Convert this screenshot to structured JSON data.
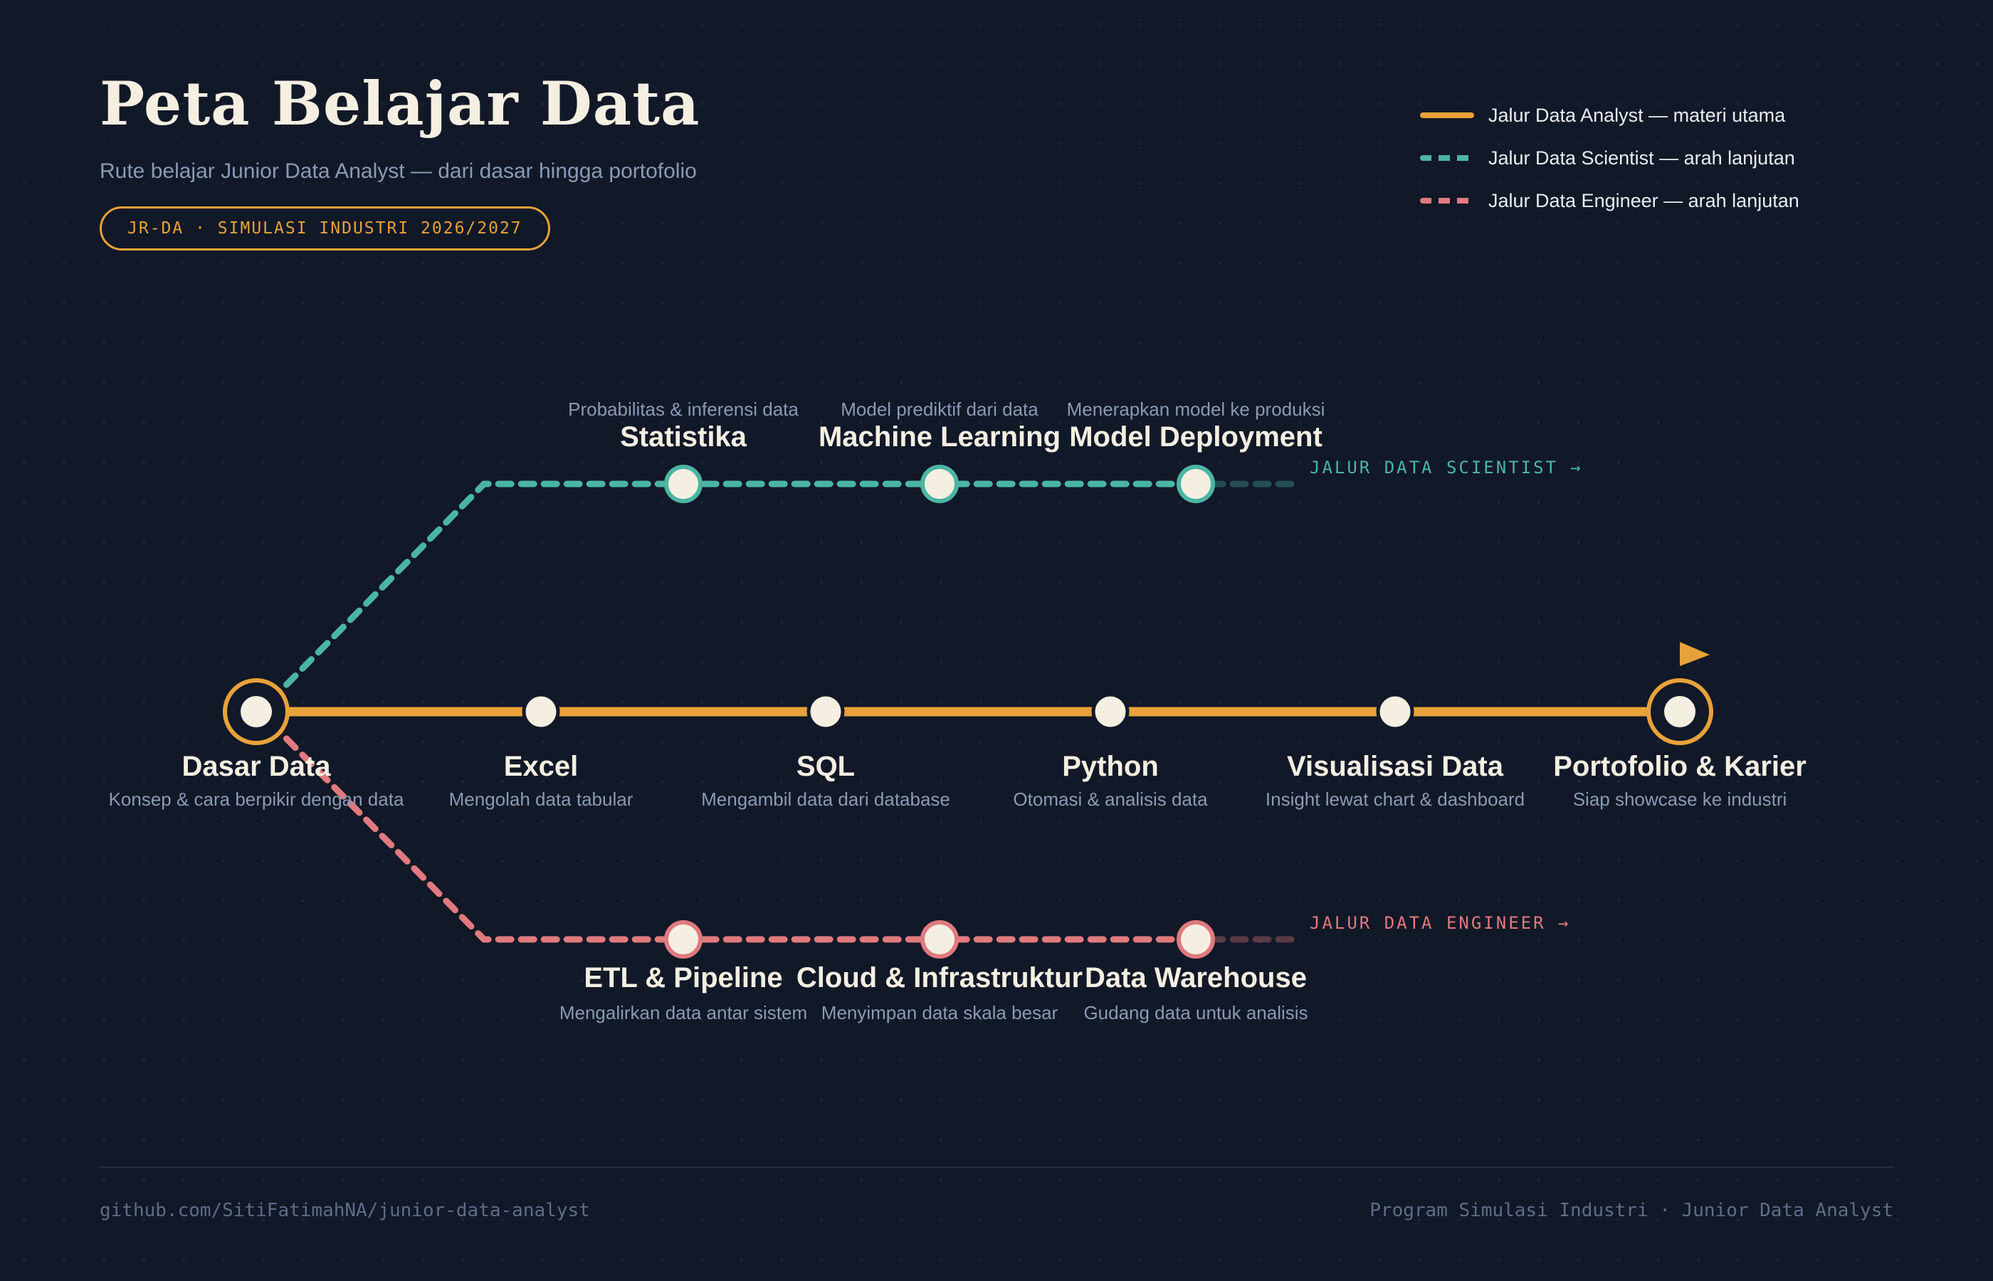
{
  "header": {
    "title": "Peta Belajar Data",
    "subtitle": "Rute belajar Junior Data Analyst — dari dasar hingga portofolio",
    "badge": "JR-DA · SIMULASI INDUSTRI 2026/2027"
  },
  "legend": [
    {
      "label": "Jalur Data Analyst — materi utama",
      "color": "#e8a23a",
      "style": "solid"
    },
    {
      "label": "Jalur Data Scientist — arah lanjutan",
      "color": "#4bb5a3",
      "style": "dashed"
    },
    {
      "label": "Jalur Data Engineer — arah lanjutan",
      "color": "#e07a7f",
      "style": "dashed"
    }
  ],
  "colors": {
    "background": "#111827",
    "analyst": "#e8a23a",
    "scientist": "#4bb5a3",
    "engineer": "#e07a7f",
    "station_fill": "#f5efe2",
    "text_muted": "#8b9ab4"
  },
  "main_line": {
    "stations": [
      {
        "title": "Dasar Data",
        "desc": "Konsep & cara berpikir dengan data",
        "terminal": true
      },
      {
        "title": "Excel",
        "desc": "Mengolah data tabular"
      },
      {
        "title": "SQL",
        "desc": "Mengambil data dari database"
      },
      {
        "title": "Python",
        "desc": "Otomasi & analisis data"
      },
      {
        "title": "Visualisasi Data",
        "desc": "Insight lewat chart & dashboard"
      },
      {
        "title": "Portofolio & Karier",
        "desc": "Siap showcase ke industri",
        "terminal": true,
        "flag_icon": "flag-icon"
      }
    ]
  },
  "scientist_branch": {
    "tag": "JALUR DATA SCIENTIST →",
    "stations": [
      {
        "title": "Statistika",
        "desc": "Probabilitas & inferensi data"
      },
      {
        "title": "Machine Learning",
        "desc": "Model prediktif dari data"
      },
      {
        "title": "Model Deployment",
        "desc": "Menerapkan model ke produksi"
      }
    ]
  },
  "engineer_branch": {
    "tag": "JALUR DATA ENGINEER →",
    "stations": [
      {
        "title": "ETL & Pipeline",
        "desc": "Mengalirkan data antar sistem"
      },
      {
        "title": "Cloud & Infrastruktur",
        "desc": "Menyimpan data skala besar"
      },
      {
        "title": "Data Warehouse",
        "desc": "Gudang data untuk analisis"
      }
    ]
  },
  "footer": {
    "left": "github.com/SitiFatimahNA/junior-data-analyst",
    "right": "Program Simulasi Industri · Junior Data Analyst"
  }
}
